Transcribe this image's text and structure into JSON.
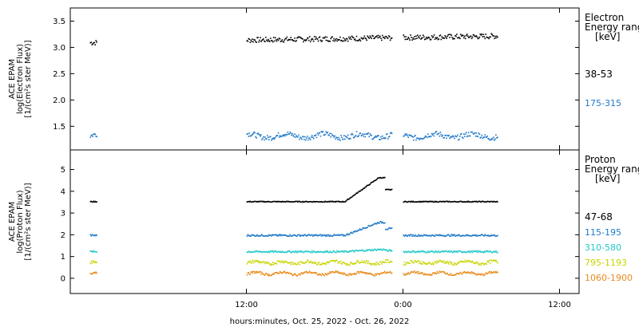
{
  "chart_data": {
    "type": "scatter",
    "xlabel": "hours:minutes, Oct. 25, 2022 - Oct. 26, 2022",
    "x_range_hours": [
      -1.5,
      37.5
    ],
    "x_ticks": [
      {
        "hour": 12,
        "label": "12:00"
      },
      {
        "hour": 24,
        "label": "0:00"
      },
      {
        "hour": 36,
        "label": "12:00"
      }
    ],
    "segments": [
      [
        0.0,
        0.5
      ],
      [
        12.0,
        23.1
      ],
      [
        24.0,
        31.2
      ]
    ],
    "panels": [
      {
        "id": "electron",
        "ylabel": [
          "ACE EPAM",
          "log(Electron Flux)",
          "[1/(cm²s ster MeV)]"
        ],
        "ylim": [
          1.05,
          3.75
        ],
        "y_ticks": [
          {
            "value": 1.5,
            "label": "1.5"
          },
          {
            "value": 2.0,
            "label": "2.0"
          },
          {
            "value": 2.5,
            "label": "2.5"
          },
          {
            "value": 3.0,
            "label": "3.0"
          },
          {
            "value": 3.5,
            "label": "3.5"
          }
        ],
        "legend_title": [
          "Electron",
          "Energy ranges",
          "[keV]"
        ],
        "series": [
          {
            "name": "38-53",
            "color": "#000000",
            "base": 3.15,
            "jitter": 0.05,
            "trend": 0.08
          },
          {
            "name": "175-315",
            "color": "#1f78c8",
            "base": 1.33,
            "jitter": 0.05,
            "trend": 0.0
          }
        ]
      },
      {
        "id": "proton",
        "ylabel": [
          "ACE EPAM",
          "log(Proton Flux)",
          "[1/(cm²s ster MeV)]"
        ],
        "ylim": [
          -0.7,
          5.9
        ],
        "y_ticks": [
          {
            "value": 0,
            "label": "0"
          },
          {
            "value": 1,
            "label": "1"
          },
          {
            "value": 2,
            "label": "2"
          },
          {
            "value": 3,
            "label": "3"
          },
          {
            "value": 4,
            "label": "4"
          },
          {
            "value": 5,
            "label": "5"
          }
        ],
        "legend_title": [
          "Proton",
          "Energy ranges",
          "[keV]"
        ],
        "series": [
          {
            "name": "47-68",
            "color": "#000000",
            "base": 3.55,
            "jitter": 0.02,
            "bump": 1.1
          },
          {
            "name": "115-195",
            "color": "#1f78c8",
            "base": 2.0,
            "jitter": 0.04,
            "bump": 0.6
          },
          {
            "name": "310-580",
            "color": "#22c8c8",
            "base": 1.25,
            "jitter": 0.04,
            "bump": 0.1
          },
          {
            "name": "795-1193",
            "color": "#c8d400",
            "base": 0.75,
            "jitter": 0.07,
            "bump": 0.0
          },
          {
            "name": "1060-1900",
            "color": "#e88a1a",
            "base": 0.25,
            "jitter": 0.05,
            "bump": 0.0
          }
        ]
      }
    ]
  }
}
